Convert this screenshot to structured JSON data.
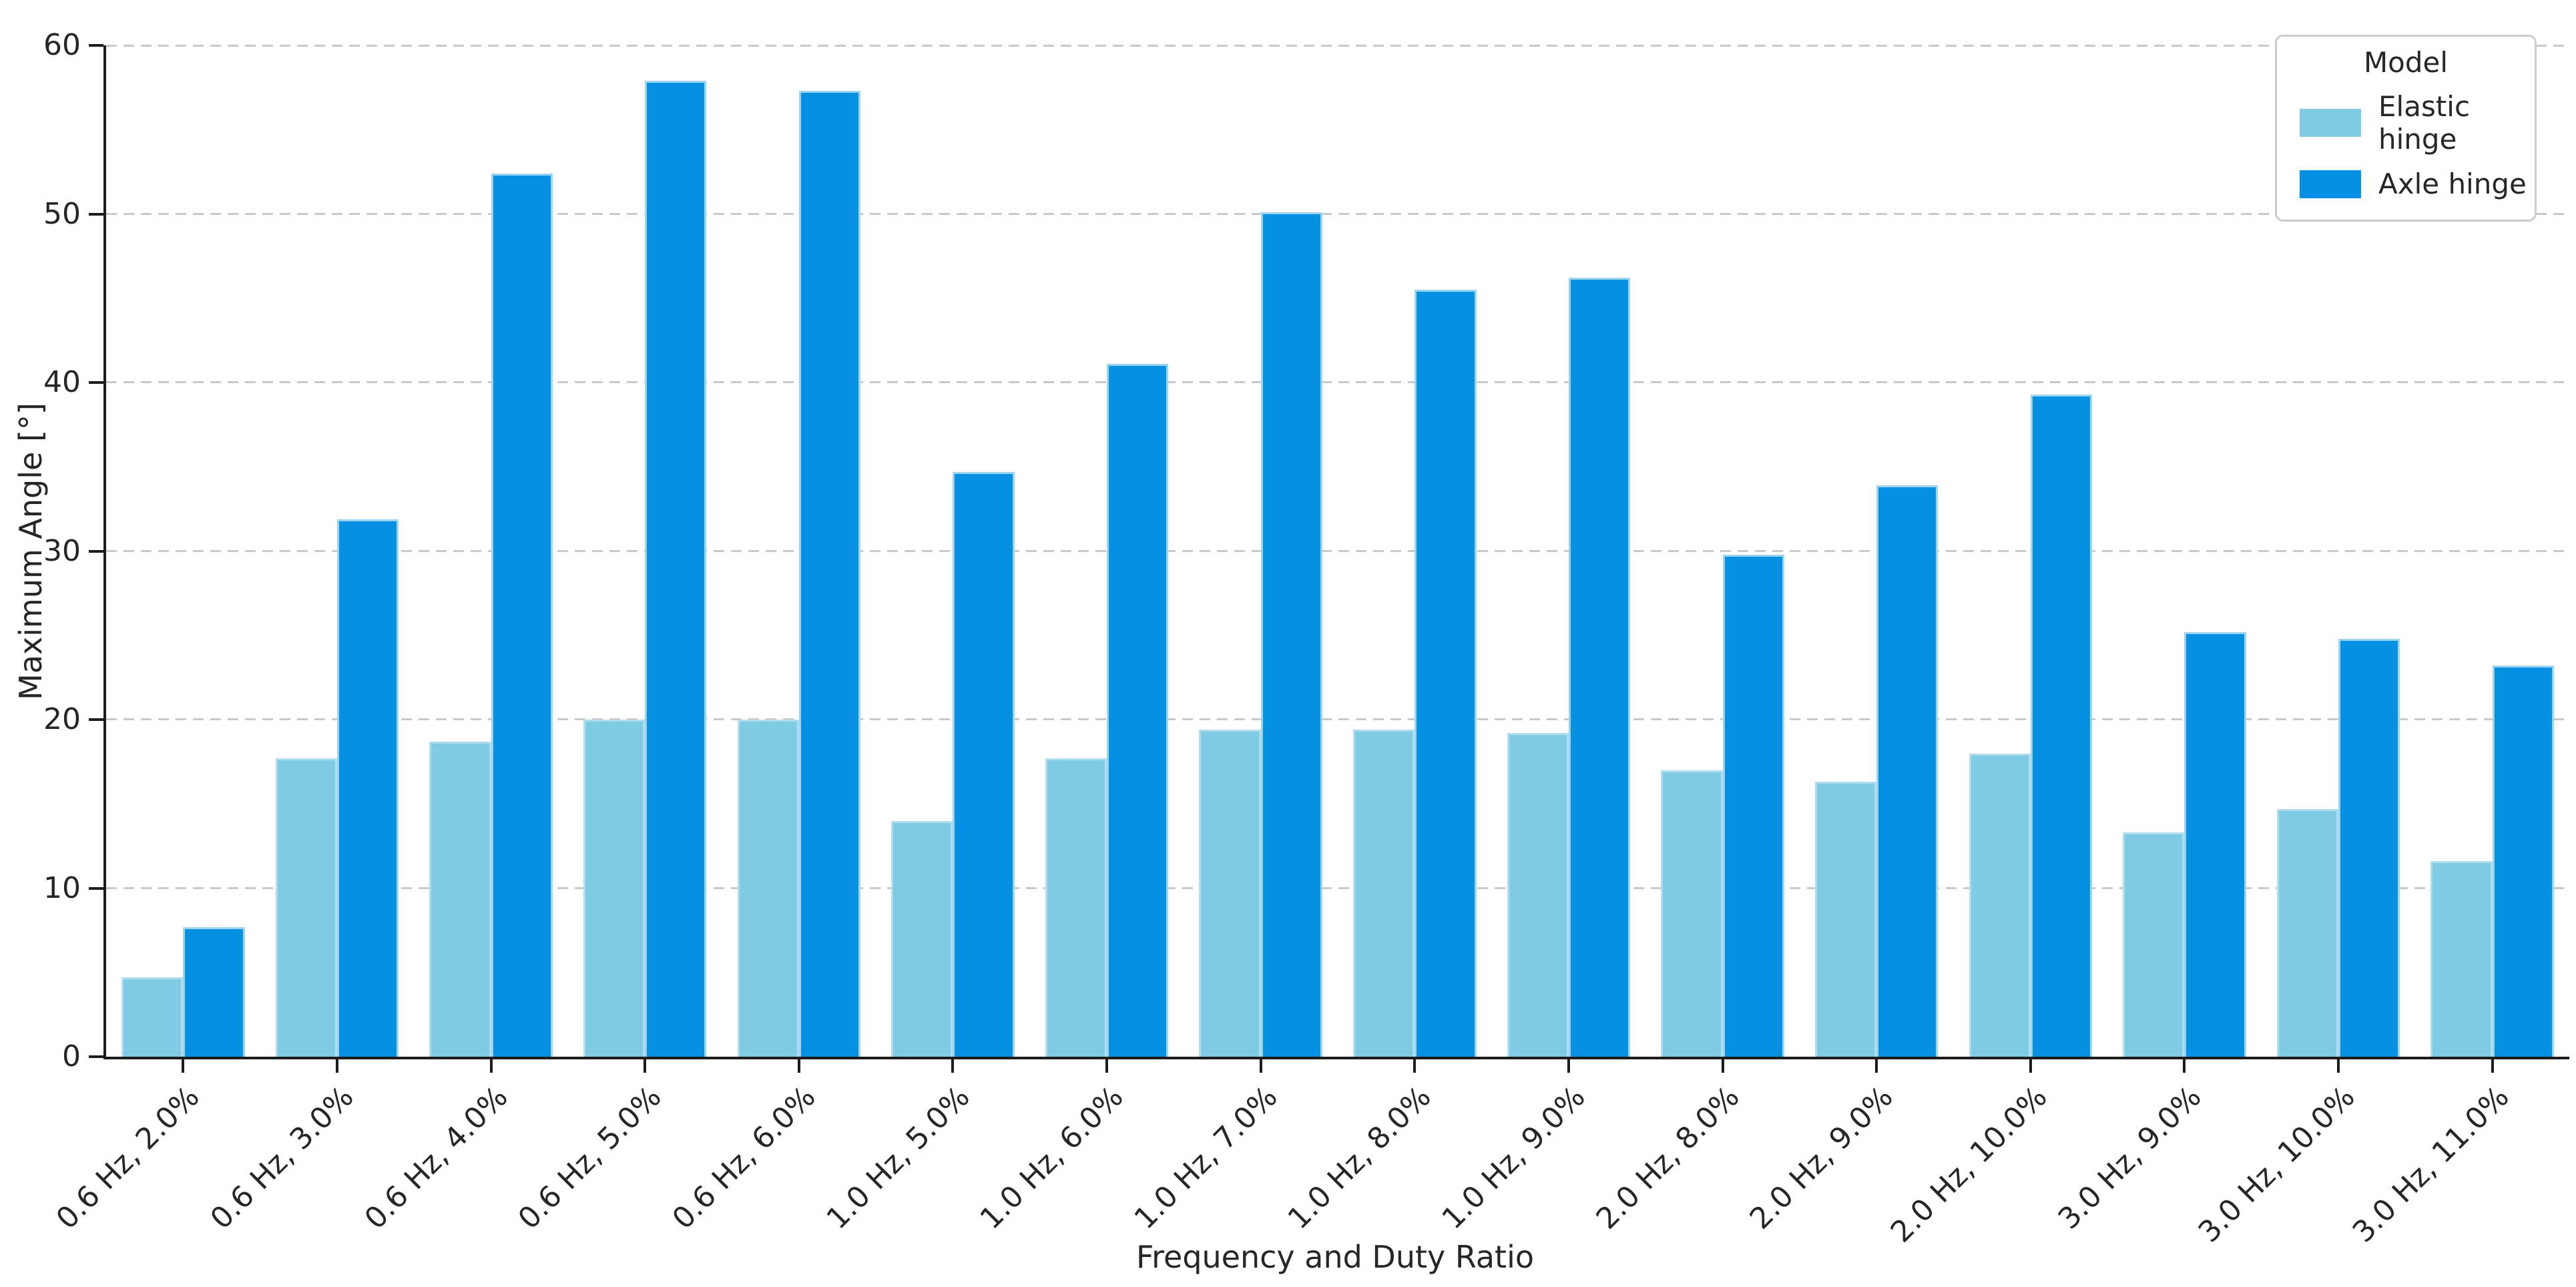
{
  "figure": {
    "xlabel": "Frequency and Duty Ratio",
    "ylabel": "Maximum Angle [°]"
  },
  "legend": {
    "title": "Model",
    "items": [
      {
        "label": "Elastic hinge",
        "color": "#7fcbe3"
      },
      {
        "label": "Axle hinge",
        "color": "#0590e2"
      }
    ]
  },
  "chart_data": {
    "type": "bar",
    "title": "",
    "xlabel": "Frequency and Duty Ratio",
    "ylabel": "Maximum Angle [°]",
    "categories": [
      "0.6 Hz, 2.0%",
      "0.6 Hz, 3.0%",
      "0.6 Hz, 4.0%",
      "0.6 Hz, 5.0%",
      "0.6 Hz, 6.0%",
      "1.0 Hz, 5.0%",
      "1.0 Hz, 6.0%",
      "1.0 Hz, 7.0%",
      "1.0 Hz, 8.0%",
      "1.0 Hz, 9.0%",
      "2.0 Hz, 8.0%",
      "2.0 Hz, 9.0%",
      "2.0 Hz, 10.0%",
      "3.0 Hz, 9.0%",
      "3.0 Hz, 10.0%",
      "3.0 Hz, 11.0%"
    ],
    "series": [
      {
        "name": "Elastic hinge",
        "color": "#7fcbe3",
        "values": [
          4.7,
          17.7,
          18.7,
          20.0,
          20.0,
          14.0,
          17.7,
          19.4,
          19.4,
          19.2,
          17.0,
          16.3,
          18.0,
          13.3,
          14.7,
          11.6
        ]
      },
      {
        "name": "Axle hinge",
        "color": "#0590e2",
        "values": [
          7.7,
          31.9,
          52.4,
          57.9,
          57.3,
          34.7,
          41.1,
          50.1,
          45.5,
          46.2,
          29.8,
          33.9,
          39.3,
          25.2,
          24.8,
          23.2
        ]
      }
    ],
    "ylim": [
      0,
      60
    ],
    "yticks": [
      0,
      10,
      20,
      30,
      40,
      50,
      60
    ],
    "grid": "horizontal-dashed",
    "gridline_color": "#c9c9c9",
    "bar_edge_color": "#b9e0f2",
    "legend_position": "upper right",
    "legend_title": "Model"
  }
}
